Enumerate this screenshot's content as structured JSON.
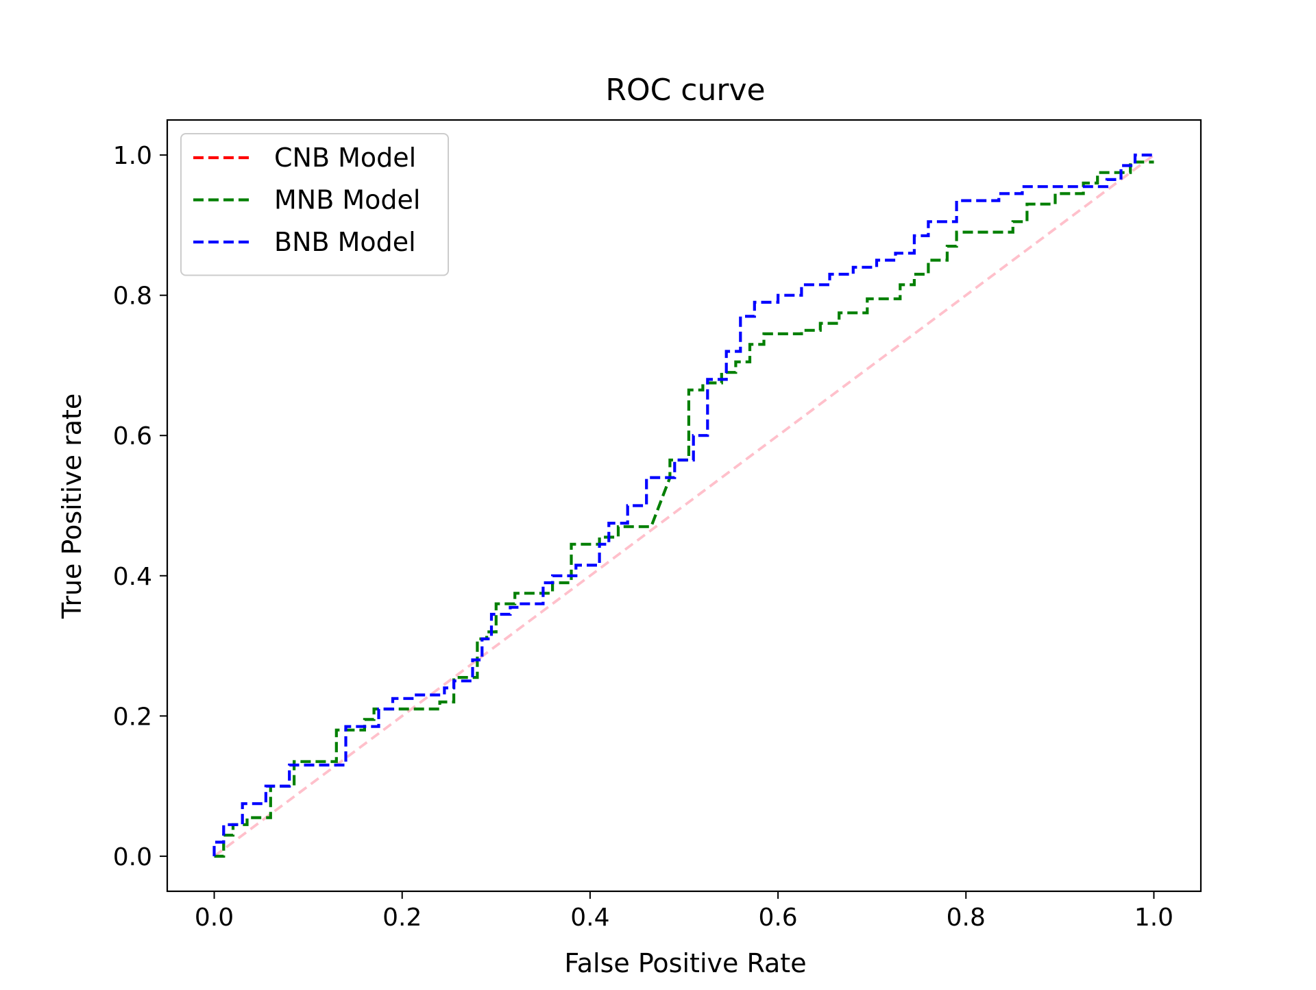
{
  "chart_data": {
    "type": "line",
    "title": "ROC curve",
    "xlabel": "False Positive Rate",
    "ylabel": "True Positive rate",
    "xlim": [
      -0.05,
      1.05
    ],
    "ylim": [
      -0.05,
      1.05
    ],
    "xticks": [
      0.0,
      0.2,
      0.4,
      0.6,
      0.8,
      1.0
    ],
    "yticks": [
      0.0,
      0.2,
      0.4,
      0.6,
      0.8,
      1.0
    ],
    "xtick_labels": [
      "0.0",
      "0.2",
      "0.4",
      "0.6",
      "0.8",
      "1.0"
    ],
    "ytick_labels": [
      "0.0",
      "0.2",
      "0.4",
      "0.6",
      "0.8",
      "1.0"
    ],
    "grid": false,
    "legend": {
      "placement": "upper-left",
      "entries": [
        "CNB Model",
        "MNB Model",
        "BNB Model"
      ]
    },
    "series": [
      {
        "name": "CNB Model",
        "color": "#ff0000",
        "dashed": true,
        "x": [],
        "y": []
      },
      {
        "name": "MNB Model",
        "color": "#007f00",
        "dashed": true,
        "x": [
          0.0,
          0.01,
          0.01,
          0.02,
          0.02,
          0.035,
          0.035,
          0.06,
          0.06,
          0.085,
          0.085,
          0.13,
          0.13,
          0.16,
          0.16,
          0.17,
          0.17,
          0.24,
          0.24,
          0.255,
          0.255,
          0.28,
          0.28,
          0.29,
          0.29,
          0.3,
          0.3,
          0.32,
          0.32,
          0.36,
          0.36,
          0.38,
          0.38,
          0.41,
          0.41,
          0.43,
          0.43,
          0.465,
          0.485,
          0.485,
          0.505,
          0.505,
          0.52,
          0.52,
          0.54,
          0.54,
          0.555,
          0.555,
          0.57,
          0.57,
          0.585,
          0.585,
          0.625,
          0.625,
          0.645,
          0.645,
          0.665,
          0.665,
          0.695,
          0.695,
          0.73,
          0.73,
          0.745,
          0.745,
          0.76,
          0.76,
          0.78,
          0.78,
          0.79,
          0.79,
          0.85,
          0.85,
          0.865,
          0.865,
          0.895,
          0.895,
          0.925,
          0.925,
          0.94,
          0.94,
          0.975,
          0.975,
          1.0
        ],
        "y": [
          0.0,
          0.0,
          0.03,
          0.03,
          0.045,
          0.045,
          0.055,
          0.055,
          0.1,
          0.1,
          0.135,
          0.135,
          0.18,
          0.18,
          0.195,
          0.195,
          0.21,
          0.21,
          0.22,
          0.22,
          0.255,
          0.255,
          0.31,
          0.31,
          0.32,
          0.32,
          0.36,
          0.36,
          0.375,
          0.375,
          0.39,
          0.39,
          0.445,
          0.445,
          0.455,
          0.455,
          0.47,
          0.47,
          0.54,
          0.565,
          0.565,
          0.665,
          0.665,
          0.675,
          0.675,
          0.69,
          0.69,
          0.705,
          0.705,
          0.73,
          0.73,
          0.745,
          0.745,
          0.75,
          0.75,
          0.76,
          0.76,
          0.775,
          0.775,
          0.795,
          0.795,
          0.815,
          0.815,
          0.83,
          0.83,
          0.85,
          0.85,
          0.87,
          0.87,
          0.89,
          0.89,
          0.905,
          0.905,
          0.93,
          0.93,
          0.945,
          0.945,
          0.96,
          0.96,
          0.975,
          0.975,
          0.99,
          0.99
        ]
      },
      {
        "name": "BNB Model",
        "color": "#0000ff",
        "dashed": true,
        "x": [
          0.0,
          0.0,
          0.01,
          0.01,
          0.03,
          0.03,
          0.055,
          0.055,
          0.08,
          0.08,
          0.14,
          0.14,
          0.175,
          0.175,
          0.19,
          0.19,
          0.215,
          0.215,
          0.245,
          0.245,
          0.255,
          0.255,
          0.275,
          0.275,
          0.285,
          0.285,
          0.295,
          0.295,
          0.315,
          0.315,
          0.325,
          0.325,
          0.35,
          0.35,
          0.36,
          0.36,
          0.385,
          0.385,
          0.41,
          0.41,
          0.42,
          0.42,
          0.44,
          0.44,
          0.46,
          0.46,
          0.49,
          0.49,
          0.51,
          0.51,
          0.525,
          0.525,
          0.545,
          0.545,
          0.56,
          0.56,
          0.575,
          0.575,
          0.6,
          0.6,
          0.625,
          0.625,
          0.655,
          0.655,
          0.68,
          0.68,
          0.705,
          0.705,
          0.725,
          0.725,
          0.745,
          0.745,
          0.76,
          0.76,
          0.79,
          0.79,
          0.835,
          0.835,
          0.86,
          0.86,
          0.95,
          0.95,
          0.965,
          0.965,
          0.98,
          0.98,
          1.0
        ],
        "y": [
          0.0,
          0.02,
          0.02,
          0.045,
          0.045,
          0.075,
          0.075,
          0.1,
          0.1,
          0.13,
          0.13,
          0.185,
          0.185,
          0.21,
          0.21,
          0.225,
          0.225,
          0.23,
          0.23,
          0.24,
          0.24,
          0.25,
          0.25,
          0.28,
          0.28,
          0.31,
          0.31,
          0.345,
          0.345,
          0.355,
          0.355,
          0.36,
          0.36,
          0.39,
          0.39,
          0.4,
          0.4,
          0.415,
          0.415,
          0.445,
          0.445,
          0.475,
          0.475,
          0.5,
          0.5,
          0.54,
          0.54,
          0.565,
          0.565,
          0.6,
          0.6,
          0.68,
          0.68,
          0.72,
          0.72,
          0.77,
          0.77,
          0.79,
          0.79,
          0.8,
          0.8,
          0.815,
          0.815,
          0.83,
          0.83,
          0.84,
          0.84,
          0.85,
          0.85,
          0.86,
          0.86,
          0.885,
          0.885,
          0.905,
          0.905,
          0.935,
          0.935,
          0.945,
          0.945,
          0.955,
          0.955,
          0.965,
          0.965,
          0.985,
          0.985,
          1.0,
          1.0
        ]
      },
      {
        "name": "",
        "color": "#ffc0cb",
        "dashed": true,
        "x": [
          0.0,
          1.0
        ],
        "y": [
          0.0,
          1.0
        ]
      }
    ]
  }
}
